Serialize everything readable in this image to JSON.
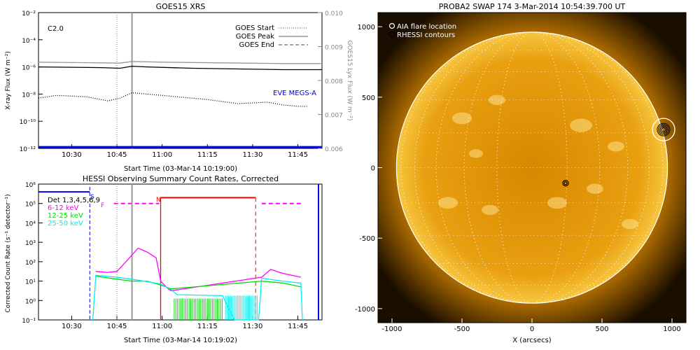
{
  "chart_data": [
    {
      "type": "line",
      "title": "GOES15 XRS",
      "xlabel": "Start Time (03-Mar-14 10:19:00)",
      "ylabel": "X-ray Flux (W m⁻²)",
      "y2label": "GOES15 Lyx Flux (W m⁻²)",
      "x_ticks": [
        "10:30",
        "10:45",
        "11:00",
        "11:15",
        "11:30",
        "11:45"
      ],
      "x_tick_minutes": [
        30,
        45,
        60,
        75,
        90,
        105
      ],
      "xlim_minutes": [
        19,
        113
      ],
      "y_scale": "log",
      "ylim_exp": [
        -12,
        -2
      ],
      "y_ticks": [
        "10⁻²",
        "10⁻⁴",
        "10⁻⁶",
        "10⁻⁸",
        "10⁻¹⁰",
        "10⁻¹²"
      ],
      "y_tick_exps": [
        -2,
        -4,
        -6,
        -8,
        -10,
        -12
      ],
      "y2lim": [
        0.006,
        0.01
      ],
      "y2_ticks": [
        "0.010",
        "0.009",
        "0.008",
        "0.007",
        "0.006"
      ],
      "y2_tick_values": [
        0.01,
        0.009,
        0.008,
        0.007,
        0.006
      ],
      "class_label": "C2.0",
      "legend": [
        {
          "label": "GOES Start",
          "style": "dotted"
        },
        {
          "label": "GOES Peak",
          "style": "solid"
        },
        {
          "label": "GOES End",
          "style": "dashed"
        }
      ],
      "eve_label": "EVE MEGS-A",
      "vlines_minutes": {
        "start": 45,
        "peak": 50
      },
      "series": [
        {
          "name": "",
          "color": "#000000",
          "axis": "left",
          "points": [
            [
              19,
              -6.0
            ],
            [
              40,
              -6.05
            ],
            [
              46,
              -6.1
            ],
            [
              50,
              -5.95
            ],
            [
              55,
              -6.0
            ],
            [
              70,
              -6.1
            ],
            [
              85,
              -6.15
            ],
            [
              100,
              -6.2
            ],
            [
              113,
              -6.2
            ]
          ]
        },
        {
          "name": "",
          "color": "#999999",
          "axis": "left",
          "points": [
            [
              19,
              -5.65
            ],
            [
              40,
              -5.7
            ],
            [
              46,
              -5.72
            ],
            [
              50,
              -5.6
            ],
            [
              60,
              -5.65
            ],
            [
              80,
              -5.7
            ],
            [
              100,
              -5.75
            ],
            [
              113,
              -5.75
            ]
          ]
        },
        {
          "name": "",
          "color": "#000000",
          "axis": "left",
          "style": "dotted",
          "points": [
            [
              19,
              -8.3
            ],
            [
              25,
              -8.1
            ],
            [
              35,
              -8.2
            ],
            [
              42,
              -8.5
            ],
            [
              46,
              -8.3
            ],
            [
              50,
              -7.9
            ],
            [
              55,
              -8.0
            ],
            [
              65,
              -8.2
            ],
            [
              75,
              -8.4
            ],
            [
              85,
              -8.7
            ],
            [
              95,
              -8.6
            ],
            [
              100,
              -8.8
            ],
            [
              105,
              -8.9
            ],
            [
              108,
              -8.9
            ]
          ]
        },
        {
          "name": "",
          "color": "#0000ff",
          "axis": "left",
          "points": [
            [
              19,
              -11.9
            ],
            [
              113,
              -11.9
            ]
          ]
        }
      ]
    },
    {
      "type": "line",
      "title": "HESSI Observing Summary Count Rates, Corrected",
      "xlabel": "Start Time (03-Mar-14 10:19:02)",
      "ylabel": "Corrected Count Rate (s⁻¹ detector⁻¹)",
      "x_ticks": [
        "10:30",
        "10:45",
        "11:00",
        "11:15",
        "11:30",
        "11:45"
      ],
      "x_tick_minutes": [
        30,
        45,
        60,
        75,
        90,
        105
      ],
      "xlim_minutes": [
        19,
        113
      ],
      "y_scale": "log",
      "ylim_exp": [
        -1,
        6
      ],
      "y_ticks": [
        "10⁶",
        "10⁵",
        "10⁴",
        "10³",
        "10²",
        "10¹",
        "10⁰",
        "10⁻¹"
      ],
      "y_tick_exps": [
        6,
        5,
        4,
        3,
        2,
        1,
        0,
        -1
      ],
      "legend": [
        {
          "label": "Det 1,3,4,5,6,9",
          "color": "#000000"
        },
        {
          "label": "6-12 keV",
          "color": "#ff00ff"
        },
        {
          "label": "12-25 keV",
          "color": "#00dd00"
        },
        {
          "label": "25-50 keV",
          "color": "#00eeee"
        }
      ],
      "markers": {
        "S": "S",
        "F": "F",
        "N": "N"
      },
      "vlines_minutes": {
        "blue_dashed": 36,
        "start": 45,
        "peak": 50,
        "red_solid": 59.5,
        "red_dashed": 91
      },
      "series": [
        {
          "name": "6-12 keV",
          "color": "#ff00ff",
          "points": [
            [
              38,
              1.5
            ],
            [
              42,
              1.45
            ],
            [
              45,
              1.5
            ],
            [
              48,
              2.0
            ],
            [
              52,
              2.7
            ],
            [
              55,
              2.5
            ],
            [
              58,
              2.2
            ],
            [
              59.5,
              1.0
            ],
            [
              62,
              0.6
            ],
            [
              63,
              0.5
            ],
            [
              93,
              1.2
            ],
            [
              96,
              1.6
            ],
            [
              100,
              1.4
            ],
            [
              103,
              1.3
            ],
            [
              106,
              1.2
            ]
          ]
        },
        {
          "name": "12-25 keV",
          "color": "#00dd00",
          "points": [
            [
              38,
              1.25
            ],
            [
              45,
              1.1
            ],
            [
              50,
              1.0
            ],
            [
              55,
              1.0
            ],
            [
              59.5,
              0.8
            ],
            [
              63,
              0.6
            ],
            [
              93,
              1.0
            ],
            [
              100,
              0.9
            ],
            [
              106,
              0.7
            ]
          ]
        },
        {
          "name": "25-50 keV",
          "color": "#00eeee",
          "points": [
            [
              37,
              -1
            ],
            [
              38,
              1.3
            ],
            [
              45,
              1.2
            ],
            [
              52,
              1.05
            ],
            [
              59.5,
              0.85
            ],
            [
              63,
              0.55
            ],
            [
              65,
              0.3
            ],
            [
              80,
              0.25
            ],
            [
              84,
              -1
            ],
            [
              92,
              -1
            ],
            [
              93,
              1.15
            ],
            [
              100,
              1.0
            ],
            [
              106,
              0.9
            ],
            [
              106.5,
              -1
            ]
          ]
        }
      ]
    },
    {
      "type": "heatmap",
      "title": "PROBA2 SWAP 174  3-Mar-2014 10:54:39.700 UT",
      "xlabel": "X (arcsecs)",
      "ylabel": "",
      "xlim": [
        -1100,
        1100
      ],
      "ylim": [
        -1100,
        1100
      ],
      "x_ticks": [
        "-1000",
        "-500",
        "0",
        "500",
        "1000"
      ],
      "x_tick_values": [
        -1000,
        -500,
        0,
        500,
        1000
      ],
      "y_ticks": [
        "1000",
        "500",
        "0",
        "-500",
        "-1000"
      ],
      "y_tick_values": [
        1000,
        500,
        0,
        -500,
        -1000
      ],
      "legend": [
        {
          "label": "AIA flare location"
        },
        {
          "label": "RHESSI contours"
        }
      ],
      "sun_radius_arcsec": 968,
      "flare_location_arcsec": [
        940,
        270
      ],
      "rhessi_source_arcsec": [
        240,
        -110
      ],
      "colors": {
        "disk_core": "#d88700",
        "disk_edge": "#f7c640",
        "limb": "#ffffff",
        "background": "#1a0e00"
      }
    }
  ]
}
